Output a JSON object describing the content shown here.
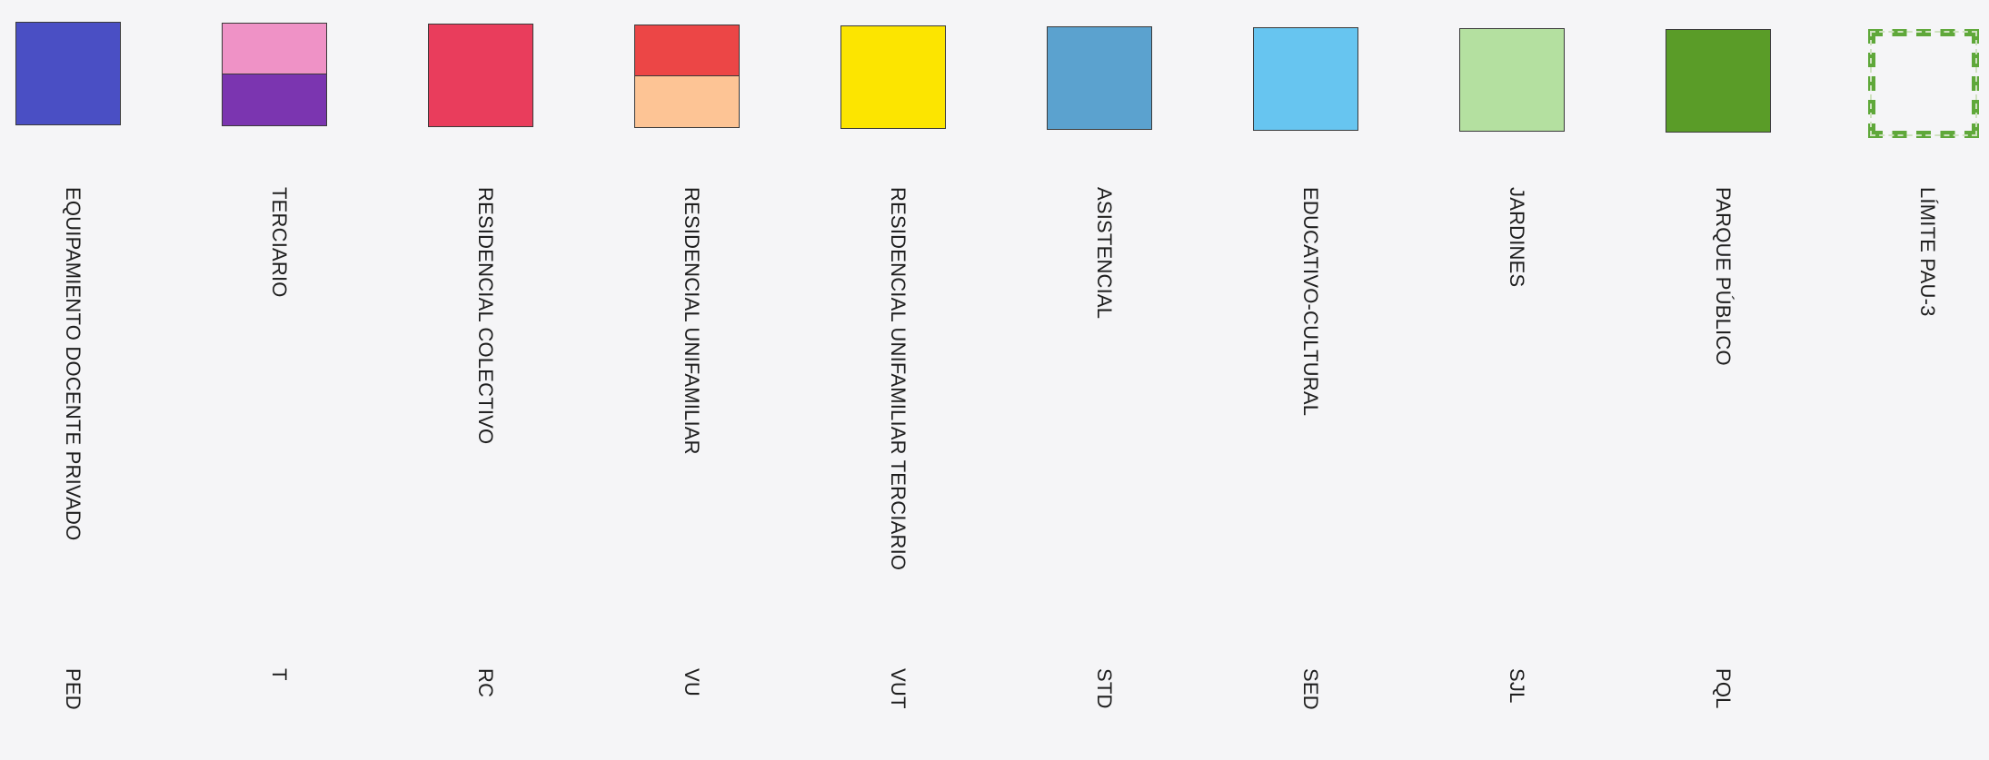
{
  "legend": {
    "items": [
      {
        "name": "EQUIPAMIENTO DOCENTE PRIVADO",
        "code": "PED",
        "colors": [
          "#4a4fc4"
        ]
      },
      {
        "name": "TERCIARIO",
        "code": "T",
        "colors": [
          "#ef92c6",
          "#7b35b0"
        ]
      },
      {
        "name": "RESIDENCIAL COLECTIVO",
        "code": "RC",
        "colors": [
          "#e93d5c"
        ]
      },
      {
        "name": "RESIDENCIAL UNIFAMILIAR",
        "code": "VU",
        "colors": [
          "#ec4646",
          "#fdc495"
        ]
      },
      {
        "name": "RESIDENCIAL UNIFAMILIAR TERCIARIO",
        "code": "VUT",
        "colors": [
          "#fce500"
        ]
      },
      {
        "name": "ASISTENCIAL",
        "code": "STD",
        "colors": [
          "#5ba2cf"
        ]
      },
      {
        "name": "EDUCATIVO-CULTURAL",
        "code": "SED",
        "colors": [
          "#67c5f0"
        ]
      },
      {
        "name": "JARDINES",
        "code": "SJL",
        "colors": [
          "#b4e0a0"
        ]
      },
      {
        "name": "PARQUE PÚBLICO",
        "code": "PQL",
        "colors": [
          "#5a9c28"
        ]
      },
      {
        "name": "LÍMITE PAU-3",
        "code": "",
        "colors": [
          "#5fa83a"
        ]
      }
    ]
  }
}
